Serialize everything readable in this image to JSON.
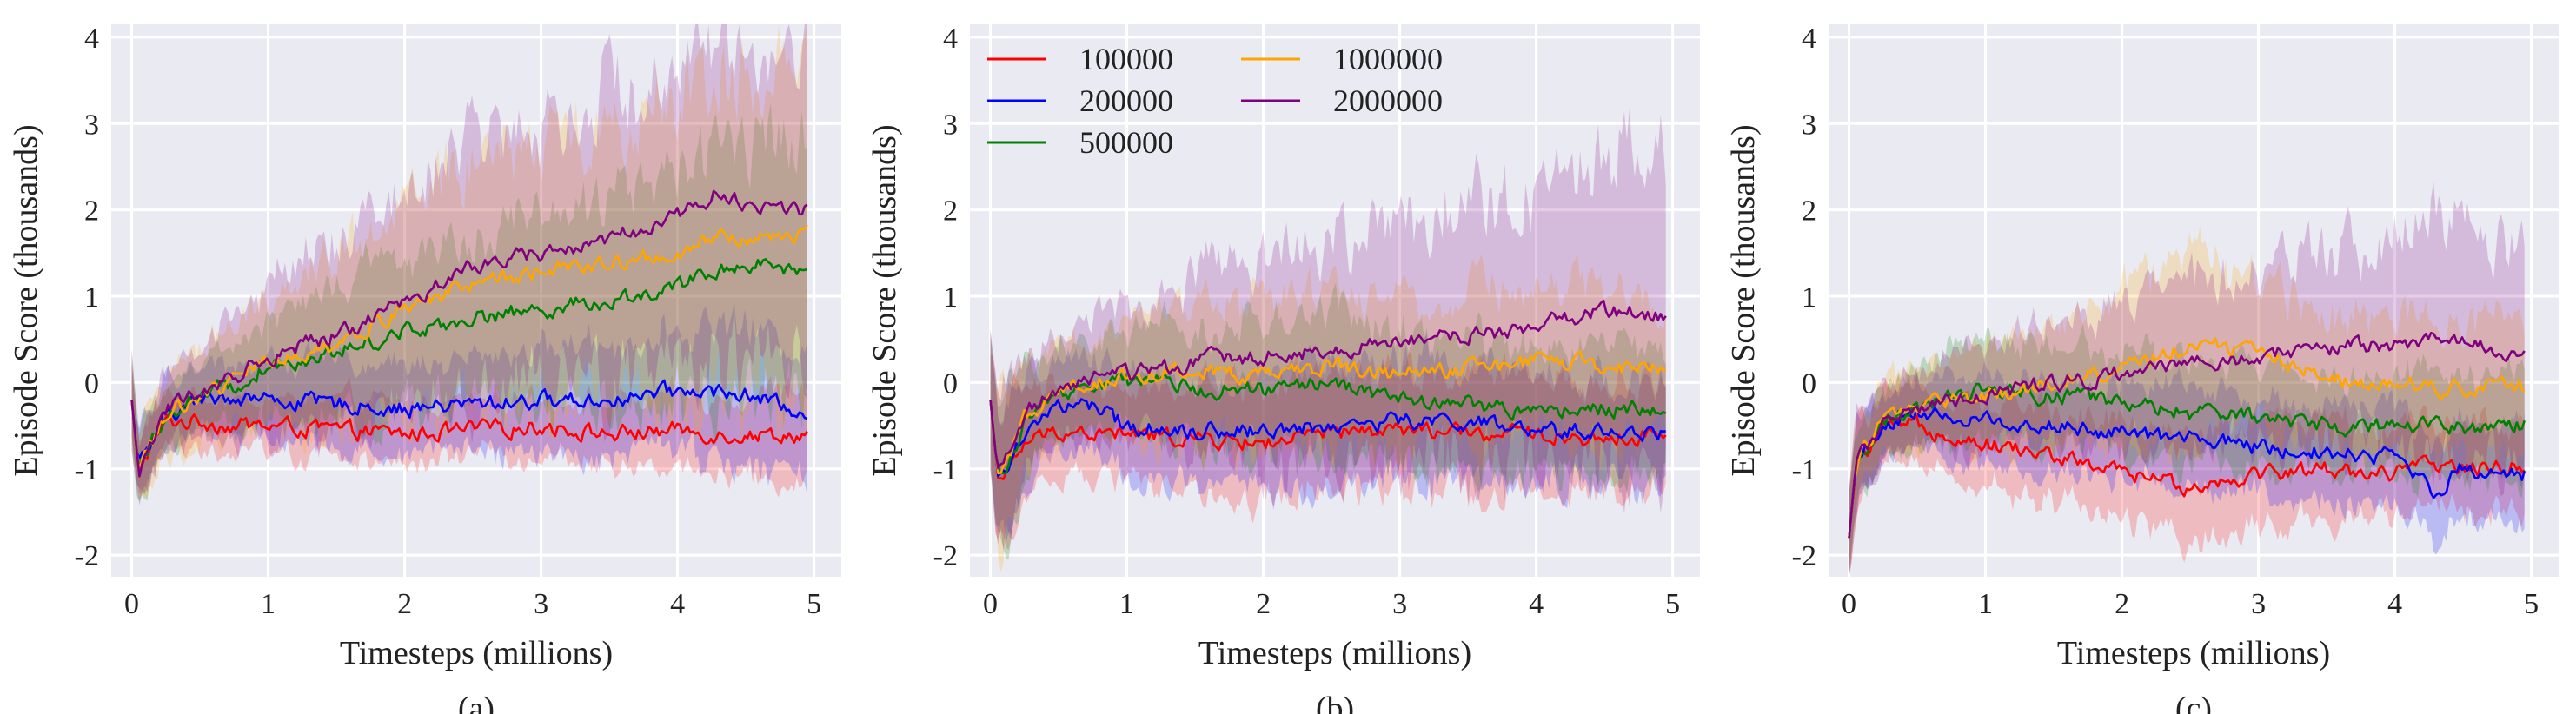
{
  "chart_data": [
    {
      "type": "line",
      "caption": "(a)",
      "xlabel": "Timesteps (millions)",
      "ylabel": "Episode Score (thousands)",
      "xlim": [
        -0.15,
        5.2
      ],
      "ylim": [
        -2.25,
        4.15
      ],
      "xticks": [
        "0",
        "1",
        "2",
        "3",
        "4",
        "5"
      ],
      "yticks": [
        "-2",
        "-1",
        "0",
        "1",
        "2",
        "3",
        "4"
      ],
      "grid": true,
      "legend": null,
      "x": [
        0,
        0.05,
        0.25,
        0.5,
        0.75,
        1.0,
        1.5,
        2.0,
        2.5,
        3.0,
        3.5,
        4.0,
        4.3,
        4.5,
        4.95
      ],
      "series": [
        {
          "name": "100000",
          "color": "#ff0000",
          "values": [
            -0.2,
            -1.0,
            -0.45,
            -0.45,
            -0.5,
            -0.5,
            -0.55,
            -0.6,
            -0.55,
            -0.5,
            -0.6,
            -0.55,
            -0.6,
            -0.6,
            -0.6
          ],
          "band": [
            0.5,
            0.4,
            0.3,
            0.3,
            0.3,
            0.3,
            0.35,
            0.35,
            0.35,
            0.35,
            0.35,
            0.4,
            0.4,
            0.45,
            0.5
          ]
        },
        {
          "name": "200000",
          "color": "#0000ff",
          "values": [
            -0.2,
            -1.0,
            -0.4,
            -0.2,
            -0.15,
            -0.2,
            -0.25,
            -0.3,
            -0.25,
            -0.2,
            -0.2,
            -0.1,
            -0.1,
            -0.15,
            -0.35
          ],
          "band": [
            0.5,
            0.4,
            0.4,
            0.35,
            0.4,
            0.45,
            0.5,
            0.5,
            0.55,
            0.6,
            0.65,
            0.7,
            0.8,
            0.8,
            0.8
          ]
        },
        {
          "name": "500000",
          "color": "#008000",
          "values": [
            -0.2,
            -1.0,
            -0.35,
            -0.15,
            -0.05,
            0.2,
            0.35,
            0.6,
            0.75,
            0.85,
            0.95,
            1.1,
            1.3,
            1.4,
            1.3
          ],
          "band": [
            0.5,
            0.4,
            0.4,
            0.45,
            0.5,
            0.6,
            0.8,
            0.9,
            1.0,
            1.1,
            1.2,
            1.3,
            1.4,
            1.5,
            1.5
          ]
        },
        {
          "name": "1000000",
          "color": "#ffa500",
          "values": [
            -0.2,
            -1.0,
            -0.35,
            -0.15,
            0.0,
            0.25,
            0.45,
            0.85,
            1.15,
            1.3,
            1.35,
            1.5,
            1.65,
            1.65,
            1.75
          ],
          "band": [
            0.5,
            0.4,
            0.45,
            0.55,
            0.65,
            0.8,
            1.0,
            1.2,
            1.4,
            1.5,
            1.6,
            1.8,
            1.9,
            2.0,
            2.0
          ]
        },
        {
          "name": "2000000",
          "color": "#800080",
          "values": [
            -0.2,
            -1.0,
            -0.3,
            -0.1,
            0.05,
            0.3,
            0.55,
            0.95,
            1.35,
            1.5,
            1.65,
            1.95,
            2.2,
            2.05,
            2.0
          ],
          "band": [
            0.5,
            0.4,
            0.45,
            0.55,
            0.7,
            0.85,
            1.05,
            1.3,
            1.5,
            1.6,
            1.7,
            1.8,
            1.9,
            1.8,
            1.7
          ]
        }
      ]
    },
    {
      "type": "line",
      "caption": "(b)",
      "xlabel": "Timesteps (millions)",
      "ylabel": "Episode Score (thousands)",
      "xlim": [
        -0.15,
        5.2
      ],
      "ylim": [
        -2.25,
        4.15
      ],
      "xticks": [
        "0",
        "1",
        "2",
        "3",
        "4",
        "5"
      ],
      "yticks": [
        "-2",
        "-1",
        "0",
        "1",
        "2",
        "3",
        "4"
      ],
      "grid": true,
      "legend": "top-left",
      "x": [
        0,
        0.05,
        0.1,
        0.25,
        0.5,
        0.75,
        1.0,
        1.5,
        2.0,
        2.5,
        3.0,
        3.5,
        4.0,
        4.5,
        4.95
      ],
      "series": [
        {
          "name": "100000",
          "color": "#ff0000",
          "values": [
            -0.2,
            -1.0,
            -1.15,
            -0.7,
            -0.55,
            -0.6,
            -0.6,
            -0.65,
            -0.7,
            -0.6,
            -0.55,
            -0.6,
            -0.6,
            -0.65,
            -0.6
          ],
          "band": [
            0.7,
            0.8,
            0.9,
            0.6,
            0.45,
            0.5,
            0.5,
            0.6,
            0.7,
            0.7,
            0.7,
            0.7,
            0.65,
            0.6,
            0.6
          ]
        },
        {
          "name": "200000",
          "color": "#0000ff",
          "values": [
            -0.2,
            -1.0,
            -1.1,
            -0.55,
            -0.25,
            -0.3,
            -0.5,
            -0.55,
            -0.55,
            -0.5,
            -0.45,
            -0.45,
            -0.6,
            -0.55,
            -0.6
          ],
          "band": [
            0.7,
            0.8,
            0.9,
            0.6,
            0.5,
            0.55,
            0.6,
            0.6,
            0.65,
            0.7,
            0.7,
            0.7,
            0.65,
            0.6,
            0.6
          ]
        },
        {
          "name": "500000",
          "color": "#008000",
          "values": [
            -0.2,
            -1.0,
            -1.05,
            -0.45,
            -0.15,
            -0.05,
            0.0,
            -0.05,
            -0.1,
            0.0,
            -0.2,
            -0.25,
            -0.35,
            -0.3,
            -0.3
          ],
          "band": [
            0.7,
            0.8,
            0.9,
            0.6,
            0.5,
            0.55,
            0.6,
            0.7,
            0.75,
            0.8,
            0.8,
            0.8,
            0.75,
            0.75,
            0.7
          ]
        },
        {
          "name": "1000000",
          "color": "#ffa500",
          "values": [
            -0.2,
            -1.0,
            -1.0,
            -0.4,
            -0.1,
            0.0,
            0.05,
            0.15,
            0.05,
            0.2,
            0.1,
            0.15,
            0.25,
            0.2,
            0.15
          ],
          "band": [
            0.7,
            0.8,
            0.9,
            0.6,
            0.55,
            0.6,
            0.7,
            0.8,
            0.9,
            0.9,
            0.9,
            0.9,
            0.9,
            0.85,
            0.8
          ]
        },
        {
          "name": "2000000",
          "color": "#800080",
          "values": [
            -0.2,
            -1.0,
            -1.0,
            -0.35,
            -0.05,
            0.05,
            0.1,
            0.25,
            0.3,
            0.4,
            0.45,
            0.55,
            0.65,
            0.85,
            0.75
          ],
          "band": [
            0.7,
            0.8,
            0.9,
            0.6,
            0.6,
            0.7,
            0.8,
            1.0,
            1.2,
            1.3,
            1.4,
            1.5,
            1.6,
            1.8,
            1.9
          ]
        }
      ]
    },
    {
      "type": "line",
      "caption": "(c)",
      "xlabel": "Timesteps (millions)",
      "ylabel": "Episode Score (thousands)",
      "xlim": [
        -0.15,
        5.2
      ],
      "ylim": [
        -2.25,
        4.15
      ],
      "xticks": [
        "0",
        "1",
        "2",
        "3",
        "4",
        "5"
      ],
      "yticks": [
        "-2",
        "-1",
        "0",
        "1",
        "2",
        "3",
        "4"
      ],
      "grid": true,
      "legend": null,
      "x": [
        0,
        0.05,
        0.25,
        0.5,
        0.75,
        1.0,
        1.5,
        2.0,
        2.5,
        3.0,
        3.5,
        4.0,
        4.3,
        4.5,
        4.95
      ],
      "series": [
        {
          "name": "100000",
          "color": "#ff0000",
          "values": [
            -1.8,
            -1.0,
            -0.55,
            -0.5,
            -0.6,
            -0.7,
            -0.85,
            -1.05,
            -1.2,
            -1.05,
            -1.0,
            -1.05,
            -0.95,
            -1.0,
            -0.95
          ],
          "band": [
            0.5,
            0.5,
            0.4,
            0.4,
            0.45,
            0.5,
            0.55,
            0.6,
            0.6,
            0.6,
            0.55,
            0.5,
            0.5,
            0.5,
            0.5
          ]
        },
        {
          "name": "200000",
          "color": "#0000ff",
          "values": [
            -1.8,
            -0.95,
            -0.5,
            -0.35,
            -0.4,
            -0.45,
            -0.5,
            -0.6,
            -0.65,
            -0.75,
            -0.8,
            -0.85,
            -1.25,
            -1.0,
            -1.05
          ],
          "band": [
            0.5,
            0.5,
            0.4,
            0.4,
            0.45,
            0.5,
            0.5,
            0.55,
            0.55,
            0.55,
            0.55,
            0.55,
            0.55,
            0.55,
            0.55
          ]
        },
        {
          "name": "500000",
          "color": "#008000",
          "values": [
            -1.8,
            -0.95,
            -0.45,
            -0.3,
            -0.2,
            -0.1,
            -0.15,
            -0.25,
            -0.35,
            -0.4,
            -0.5,
            -0.5,
            -0.45,
            -0.5,
            -0.5
          ],
          "band": [
            0.5,
            0.5,
            0.4,
            0.45,
            0.55,
            0.6,
            0.6,
            0.6,
            0.6,
            0.6,
            0.6,
            0.6,
            0.6,
            0.6,
            0.6
          ]
        },
        {
          "name": "1000000",
          "color": "#ffa500",
          "values": [
            -1.8,
            -0.95,
            -0.45,
            -0.3,
            -0.2,
            -0.15,
            0.0,
            0.15,
            0.45,
            0.35,
            0.05,
            0.0,
            -0.05,
            -0.05,
            -0.05
          ],
          "band": [
            0.5,
            0.5,
            0.4,
            0.45,
            0.55,
            0.6,
            0.7,
            0.9,
            1.0,
            0.9,
            0.8,
            0.8,
            0.8,
            0.8,
            0.8
          ]
        },
        {
          "name": "2000000",
          "color": "#800080",
          "values": [
            -1.8,
            -0.95,
            -0.45,
            -0.3,
            -0.2,
            -0.15,
            0.0,
            0.1,
            0.2,
            0.3,
            0.4,
            0.45,
            0.5,
            0.45,
            0.35
          ],
          "band": [
            0.5,
            0.5,
            0.4,
            0.45,
            0.55,
            0.6,
            0.7,
            0.8,
            0.9,
            1.0,
            1.1,
            1.2,
            1.4,
            1.3,
            1.2
          ]
        }
      ]
    }
  ]
}
